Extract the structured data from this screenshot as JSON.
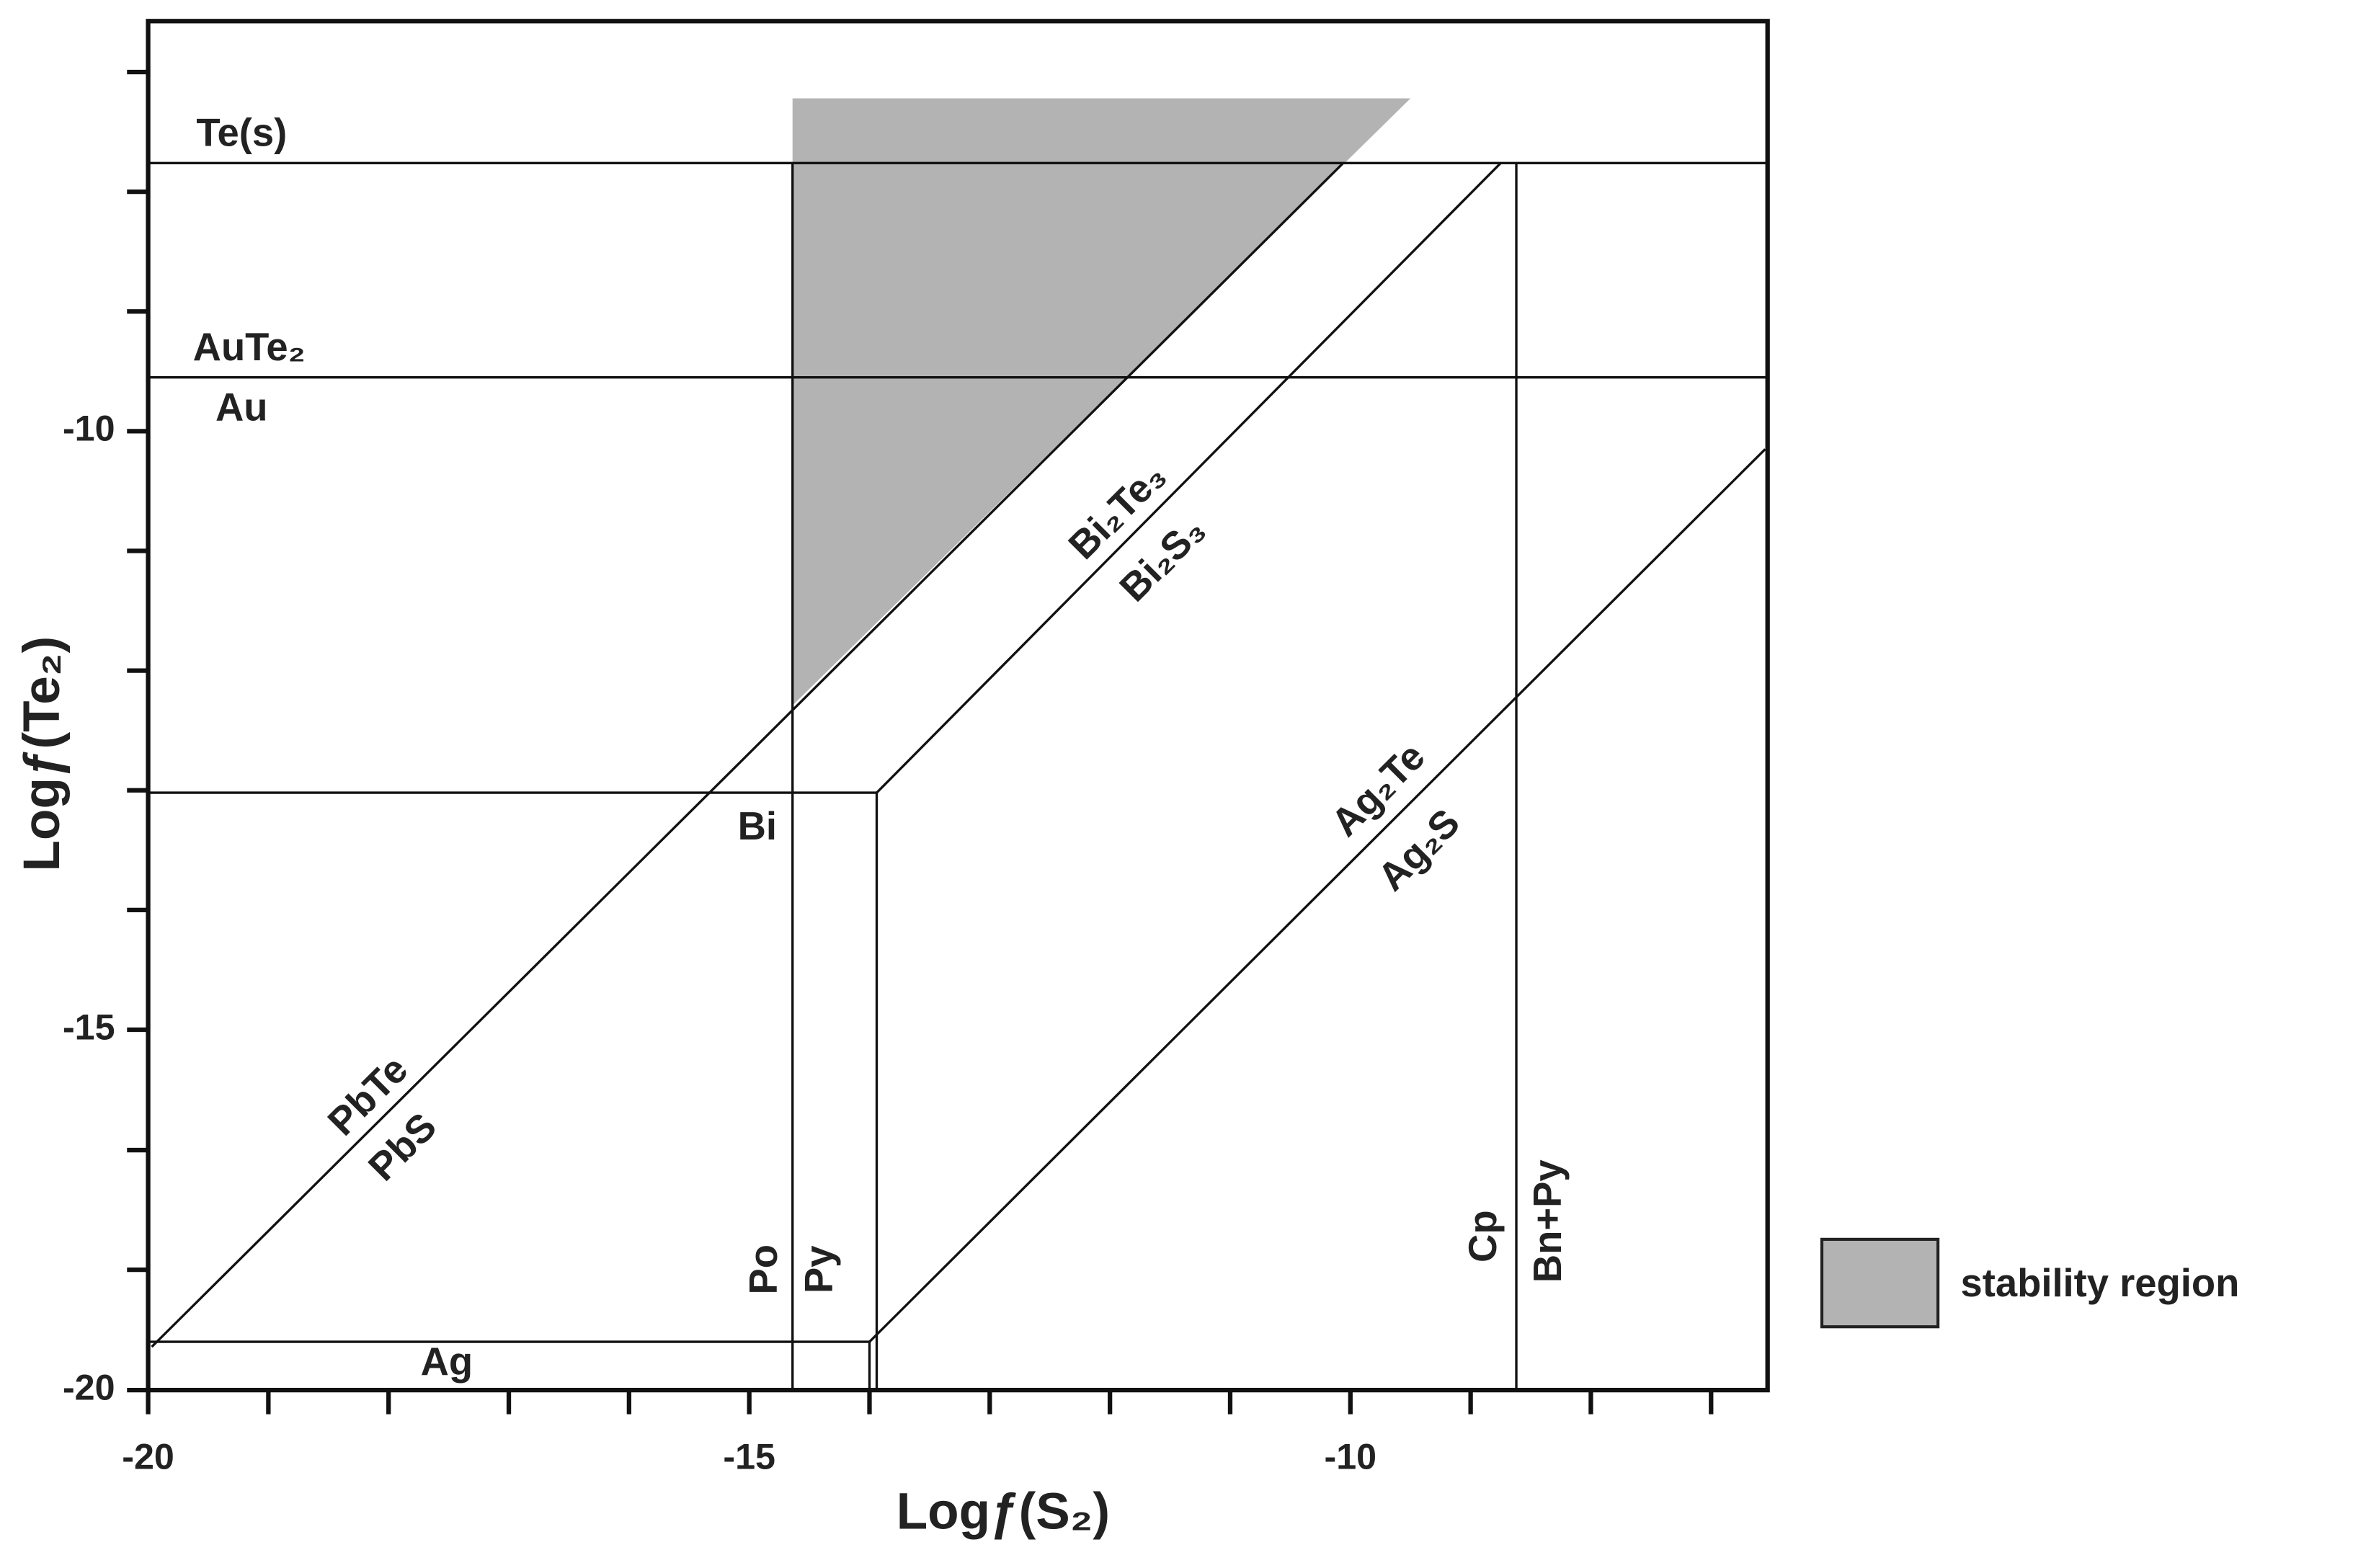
{
  "chart_data": {
    "type": "phase",
    "x_label": "Logƒ(S₂)",
    "y_label": "Logƒ(Te₂)",
    "xlim": [
      -20,
      -6.53
    ],
    "ylim": [
      -20,
      -6.57
    ],
    "xticks": [
      -20,
      -15,
      -10
    ],
    "yticks": [
      -20,
      -15,
      -10
    ],
    "xminorticks": [
      -19,
      -18,
      -17,
      -16,
      -14,
      -13,
      -12,
      -11,
      -9,
      -8,
      -7
    ],
    "yminorticks": [
      -18.33,
      -16.67,
      -14,
      -13,
      -12,
      -11,
      -9,
      -8,
      -7
    ],
    "region": {
      "name": "stability region",
      "color": "#b3b3b3",
      "x": [
        -14.64,
        -9.5,
        -14.64
      ],
      "y": [
        -7.22,
        -7.22,
        -12.29
      ]
    },
    "boundaries": [
      {
        "x": [
          -20,
          -6.53
        ],
        "y": [
          -7.76,
          -7.76
        ]
      },
      {
        "x": [
          -20,
          -6.53
        ],
        "y": [
          -9.55,
          -9.55
        ]
      },
      {
        "x": [
          -20,
          -13.94
        ],
        "y": [
          -13.02,
          -13.02
        ]
      },
      {
        "x": [
          -20,
          -14.0
        ],
        "y": [
          -19.33,
          -19.33
        ]
      },
      {
        "x": [
          -14.64,
          -14.64
        ],
        "y": [
          -20,
          -7.76
        ]
      },
      {
        "x": [
          -8.62,
          -8.62
        ],
        "y": [
          -20,
          -7.76
        ]
      },
      {
        "x": [
          -13.94,
          -13.94
        ],
        "y": [
          -13.02,
          -20
        ]
      },
      {
        "x": [
          -14.0,
          -14.0
        ],
        "y": [
          -19.33,
          -20
        ]
      },
      {
        "x": [
          -19.97,
          -10.06
        ],
        "y": [
          -19.4,
          -7.76
        ]
      },
      {
        "x": [
          -13.94,
          -8.75
        ],
        "y": [
          -13.02,
          -7.76
        ]
      },
      {
        "x": [
          -14.0,
          -6.55
        ],
        "y": [
          -19.33,
          -10.15
        ]
      }
    ],
    "annotations": [
      "Te(s)",
      "AuTe₂",
      "Au",
      "Bi",
      "Ag",
      "PbTe",
      "PbS",
      "Bi₂Te₃",
      "Bi₂S₃",
      "Ag₂Te",
      "Ag₂S",
      "Po",
      "Py",
      "Cp",
      "Bn+Py"
    ]
  }
}
